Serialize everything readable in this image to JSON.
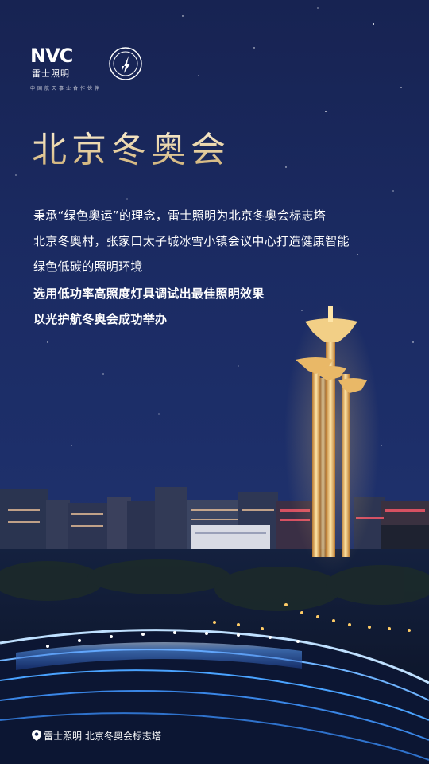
{
  "logo": {
    "mark": "NVC",
    "brand": "雷士照明",
    "tagline": "中国航天事业合作伙伴"
  },
  "title": "北京冬奥会",
  "body": {
    "lines": [
      "秉承“绿色奥运”的理念，雷士照明为北京冬奥会标志塔",
      "北京冬奥村，张家口太子城冰雪小镇会议中心打造健康智能",
      "绿色低碳的照明环境"
    ],
    "bold_lines": [
      "选用低功率高照度灯具调试出最佳照明效果",
      "以光护航冬奥会成功举办"
    ]
  },
  "caption": "雷士照明 北京冬奥会标志塔",
  "colors": {
    "sky": "#1b2b63",
    "title_gold": "#e8d2a4",
    "tower_gold": "#e9b867",
    "venue_blue": "#4aa3ff"
  }
}
